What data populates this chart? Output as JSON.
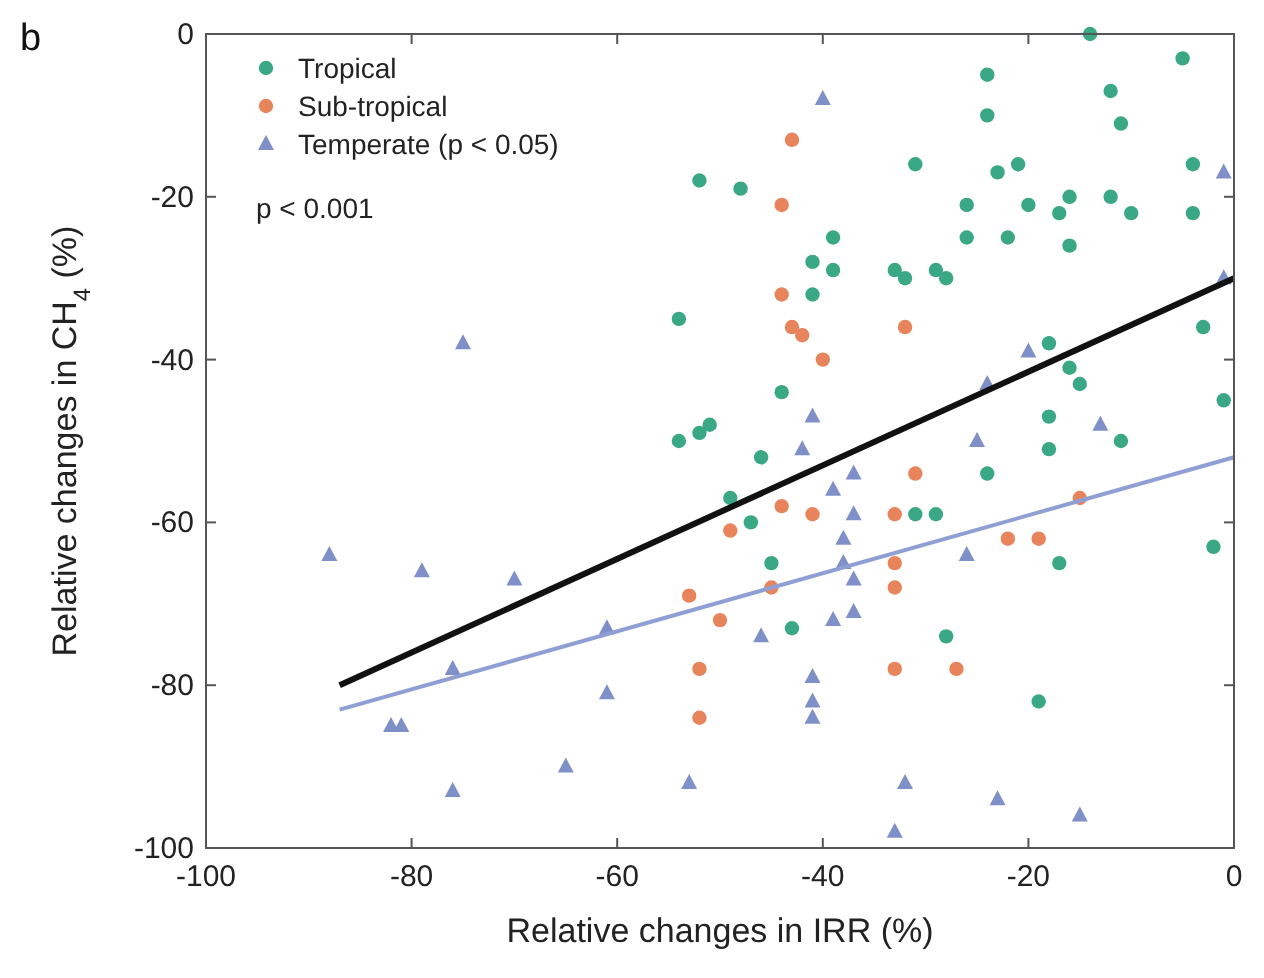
{
  "chart_data": {
    "type": "scatter",
    "xlabel": "Relative changes in IRR (%)",
    "ylabel": "Relative changes in CH$_{4}$ (%)",
    "xlim": [
      -100,
      0
    ],
    "ylim": [
      -100,
      0
    ],
    "xticks": [
      -100,
      -80,
      -60,
      -40,
      -20,
      0
    ],
    "yticks": [
      -100,
      -80,
      -60,
      -40,
      -20,
      0
    ],
    "grid": false,
    "legend": "top left",
    "annotations": [
      "b",
      "p < 0.001"
    ],
    "series": [
      {
        "name": "Tropical",
        "color": "#3aa884",
        "marker": "circle",
        "x": [
          -14,
          -5,
          -24,
          -12,
          -24,
          -11,
          -31,
          -23,
          -21,
          -4,
          -48,
          -52,
          -26,
          -20,
          -16,
          -17,
          -12,
          -10,
          -4,
          -26,
          -22,
          -16,
          -39,
          -41,
          -39,
          -41,
          -33,
          -32,
          -29,
          -28,
          -3,
          -1,
          -44,
          -18,
          -16,
          -15,
          -18,
          -2,
          -46,
          -45,
          -47,
          -49,
          -31,
          -29,
          -24,
          -18,
          -11,
          -17,
          -43,
          -28,
          -19,
          -54,
          -51,
          -54,
          -52
        ],
        "values": [
          0,
          -3,
          -5,
          -7,
          -10,
          -11,
          -16,
          -17,
          -16,
          -16,
          -19,
          -18,
          -21,
          -21,
          -20,
          -22,
          -20,
          -22,
          -22,
          -25,
          -25,
          -26,
          -25,
          -28,
          -29,
          -32,
          -29,
          -30,
          -29,
          -30,
          -36,
          -45,
          -44,
          -38,
          -41,
          -43,
          -47,
          -63,
          -52,
          -65,
          -60,
          -57,
          -59,
          -59,
          -54,
          -51,
          -50,
          -65,
          -73,
          -74,
          -82,
          -35,
          -48,
          -50,
          -49
        ]
      },
      {
        "name": "Sub-tropical",
        "color": "#e8845c",
        "marker": "circle",
        "x": [
          -43,
          -44,
          -44,
          -43,
          -42,
          -40,
          -32,
          -31,
          -44,
          -41,
          -33,
          -49,
          -45,
          -50,
          -33,
          -33,
          -22,
          -19,
          -15,
          -33,
          -27,
          -52,
          -52,
          -53
        ],
        "values": [
          -13,
          -21,
          -32,
          -36,
          -37,
          -40,
          -36,
          -54,
          -58,
          -59,
          -59,
          -61,
          -68,
          -72,
          -65,
          -68,
          -62,
          -62,
          -57,
          -78,
          -78,
          -78,
          -84,
          -69
        ]
      },
      {
        "name": "Temperate (p < 0.05)",
        "color": "#7f8fc8",
        "marker": "triangle",
        "x": [
          -88,
          -79,
          -70,
          -81,
          -82,
          -76,
          -65,
          -61,
          -53,
          -61,
          -76,
          -75,
          -40,
          -1,
          -1,
          -20,
          -13,
          -24,
          -41,
          -42,
          -37,
          -39,
          -37,
          -38,
          -38,
          -37,
          -39,
          -37,
          -46,
          -41,
          -41,
          -41,
          -26,
          -25,
          -32,
          -33,
          -23,
          -15
        ],
        "values": [
          -64,
          -66,
          -67,
          -85,
          -85,
          -93,
          -90,
          -81,
          -92,
          -73,
          -78,
          -38,
          -8,
          -17,
          -30,
          -39,
          -48,
          -43,
          -47,
          -51,
          -54,
          -56,
          -59,
          -62,
          -65,
          -67,
          -72,
          -71,
          -74,
          -79,
          -82,
          -84,
          -64,
          -50,
          -92,
          -98,
          -94,
          -96
        ]
      },
      {
        "type": "line",
        "color": "#111111",
        "marker": "none",
        "x": [
          -87,
          0
        ],
        "values": [
          -80,
          -30
        ]
      },
      {
        "type": "line",
        "color": "#8f9fd4",
        "marker": "none",
        "x": [
          -87,
          0
        ],
        "values": [
          -83,
          -52
        ]
      }
    ]
  }
}
